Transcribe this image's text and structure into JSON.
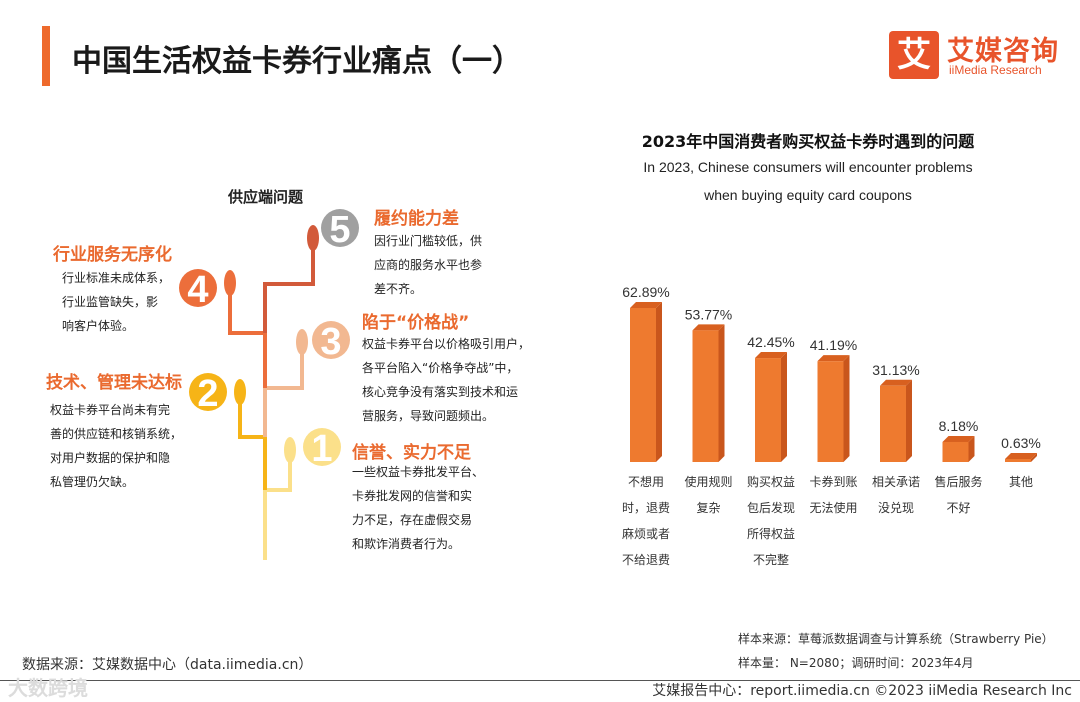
{
  "page": {
    "title": "中国生活权益卡券行业痛点（一）"
  },
  "logo": {
    "mark": "艾",
    "name_cn": "艾媒咨询",
    "name_en": "iiMedia Research"
  },
  "colors": {
    "accent": "#ee6a2c",
    "bar_front": "#ee7a2f",
    "bar_side": "#c9561c",
    "step1": "#fbe08a",
    "step2": "#f6b417",
    "step3": "#f2b891",
    "step4": "#ec6e3b",
    "step5": "#d25a3a",
    "num5": "#a0a0a0"
  },
  "supply": {
    "title": "供应端问题",
    "points": [
      {
        "num": "1",
        "title": "信誉、实力不足",
        "desc": [
          "一些权益卡券批发平台、",
          "卡券批发网的信誉和实",
          "力不足，存在虚假交易",
          "和欺诈消费者行为。"
        ]
      },
      {
        "num": "2",
        "title": "技术、管理未达标",
        "desc": [
          "权益卡券平台尚未有完",
          "善的供应链和核销系统，",
          "对用户数据的保护和隐",
          "私管理仍欠缺。"
        ]
      },
      {
        "num": "3",
        "title": "陷于“价格战”",
        "desc": [
          "权益卡券平台以价格吸引用户，",
          "各平台陷入“价格争夺战”中，",
          "核心竞争没有落实到技术和运",
          "营服务，导致问题频出。"
        ]
      },
      {
        "num": "4",
        "title": "行业服务无序化",
        "desc": [
          "行业标准未成体系，",
          "行业监管缺失，影",
          "响客户体验。"
        ]
      },
      {
        "num": "5",
        "title": "履约能力差",
        "desc": [
          "因行业门槛较低，供",
          "应商的服务水平也参",
          "差不齐。"
        ]
      }
    ]
  },
  "chart_data": {
    "type": "bar",
    "title": "2023年中国消费者购买权益卡券时遇到的问题",
    "subtitle_line1": "In 2023, Chinese consumers will encounter problems",
    "subtitle_line2": "when buying equity card coupons",
    "categories": [
      [
        "不想用",
        "时，退费",
        "麻烦或者",
        "不给退费"
      ],
      [
        "使用规则",
        "复杂"
      ],
      [
        "购买权益",
        "包后发现",
        "所得权益",
        "不完整"
      ],
      [
        "卡券到账",
        "无法使用"
      ],
      [
        "相关承诺",
        "没兑现"
      ],
      [
        "售后服务",
        "不好"
      ],
      [
        "其他"
      ]
    ],
    "values": [
      62.89,
      53.77,
      42.45,
      41.19,
      31.13,
      8.18,
      0.63
    ],
    "value_labels": [
      "62.89%",
      "53.77%",
      "42.45%",
      "41.19%",
      "31.13%",
      "8.18%",
      "0.63%"
    ],
    "ylim": [
      0,
      70
    ],
    "unit": "%"
  },
  "footer": {
    "sample_source": "样本来源：草莓派数据调查与计算系统（Strawberry Pie）",
    "sample_size": "样本量： N=2080；调研时间：2023年4月",
    "data_source": "数据来源：艾媒数据中心（data.iimedia.cn）",
    "report_center": "艾媒报告中心：report.iimedia.cn   ©2023  iiMedia Research  Inc",
    "watermark": "大数跨境"
  }
}
